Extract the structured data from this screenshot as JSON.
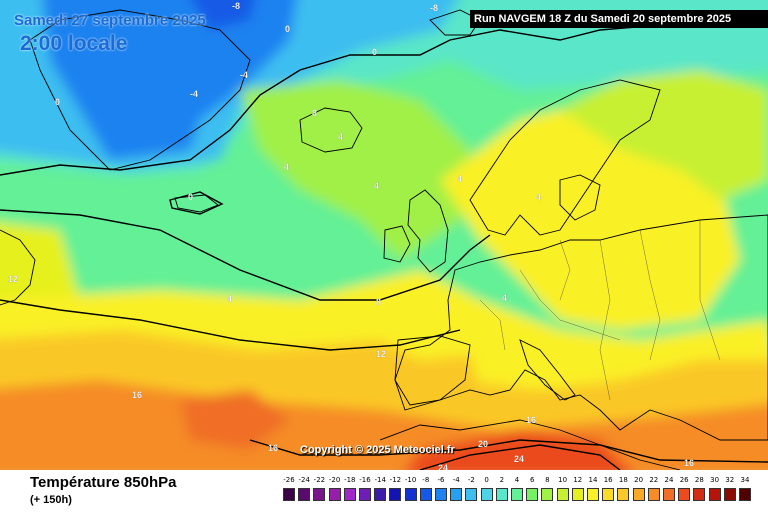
{
  "header": {
    "date_label": "Samedi 27 septembre 2025",
    "time_label": "2:00 locale",
    "run_label": "Run NAVGEM 18 Z du Samedi 20 septembre 2025"
  },
  "copyright": "Copyright © 2025 Meteociel.fr",
  "footer": {
    "title": "Température 850hPa",
    "subtitle": "(+ 150h)"
  },
  "scale": {
    "labels": [
      "-26",
      "-24",
      "-22",
      "-20",
      "-18",
      "-16",
      "-14",
      "-12",
      "-10",
      "-8",
      "-6",
      "-4",
      "-2",
      "0",
      "2",
      "4",
      "6",
      "8",
      "10",
      "12",
      "14",
      "16",
      "18",
      "20",
      "22",
      "24",
      "26",
      "28",
      "30",
      "32",
      "34"
    ],
    "colors": [
      "#3c0046",
      "#5a0a6e",
      "#7a148c",
      "#961ea8",
      "#a028c8",
      "#6e1eb4",
      "#3c1eaa",
      "#1414b4",
      "#1432d2",
      "#145ae6",
      "#1e82f0",
      "#28a0f0",
      "#3cbef0",
      "#50d2e6",
      "#5ae6c8",
      "#64f096",
      "#78f064",
      "#a0f046",
      "#c8f032",
      "#e6f01e",
      "#faf028",
      "#fadc28",
      "#fac828",
      "#faaa28",
      "#f58c28",
      "#f06e28",
      "#eb4b1e",
      "#d22d14",
      "#b4140a",
      "#8c0a05",
      "#500000"
    ]
  },
  "map": {
    "isotherm_labels": [
      {
        "text": "-8",
        "color": "#ffffff"
      },
      {
        "text": "-8",
        "color": "#ffffff"
      },
      {
        "text": "0",
        "color": "#ffffff"
      },
      {
        "text": "0",
        "color": "#ffffff"
      },
      {
        "text": "-4",
        "color": "#ffffff"
      },
      {
        "text": "-4",
        "color": "#ffffff"
      },
      {
        "text": "0",
        "color": "#ffffff"
      },
      {
        "text": "8",
        "color": "#ffffff"
      },
      {
        "text": "4",
        "color": "#ffffff"
      },
      {
        "text": "4",
        "color": "#ffffff"
      },
      {
        "text": "0",
        "color": "#ffffff"
      },
      {
        "text": "4",
        "color": "#ffffff"
      },
      {
        "text": "4",
        "color": "#ffffff"
      },
      {
        "text": "4",
        "color": "#ffffff"
      },
      {
        "text": "12",
        "color": "#ffffff"
      },
      {
        "text": "4",
        "color": "#ffffff"
      },
      {
        "text": "8",
        "color": "#ffffff"
      },
      {
        "text": "4",
        "color": "#ffffff"
      },
      {
        "text": "12",
        "color": "#ffffff"
      },
      {
        "text": "16",
        "color": "#ffffff"
      },
      {
        "text": "16",
        "color": "#ffffff"
      },
      {
        "text": "16",
        "color": "#ffffff"
      },
      {
        "text": "20",
        "color": "#ffffff"
      },
      {
        "text": "24",
        "color": "#ffffff"
      },
      {
        "text": "24",
        "color": "#ffffff"
      },
      {
        "text": "16",
        "color": "#ffffff"
      }
    ]
  }
}
